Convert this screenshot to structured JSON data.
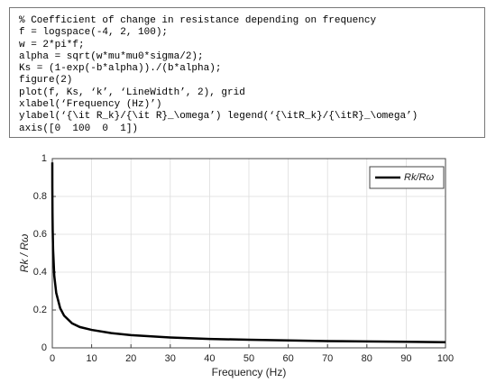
{
  "code": {
    "lines": [
      "% Coefficient of change in resistance depending on frequency",
      "f = logspace(-4, 2, 100);",
      "w = 2*pi*f;",
      "alpha = sqrt(w*mu*mu0*sigma/2);",
      "Ks = (1-exp(-b*alpha))./(b*alpha);",
      "figure(2)",
      "plot(f, Ks, ‘k’, ‘LineWidth’, 2), grid",
      "xlabel(‘Frequency (Hz)’)",
      "ylabel(‘{\\it R_k}/{\\it R}_\\omega’) legend(‘{\\itR_k}/{\\itR}_\\omega’)",
      "axis([0  100  0  1])"
    ]
  },
  "chart_data": {
    "type": "line",
    "x_label": "Frequency (Hz)",
    "y_label": "Rk / Rω",
    "x": [
      0.0001,
      0.01,
      0.05,
      0.1,
      0.2,
      0.5,
      1,
      2,
      3,
      5,
      7,
      10,
      15,
      20,
      30,
      40,
      50,
      60,
      70,
      80,
      90,
      100
    ],
    "series": [
      {
        "name": "Rk/Rω",
        "color": "#000000",
        "values": [
          0.98,
          0.85,
          0.71,
          0.62,
          0.52,
          0.38,
          0.29,
          0.21,
          0.17,
          0.13,
          0.11,
          0.095,
          0.078,
          0.067,
          0.055,
          0.047,
          0.043,
          0.039,
          0.036,
          0.034,
          0.032,
          0.03
        ]
      }
    ],
    "xlim": [
      0,
      100
    ],
    "xticks": [
      0,
      10,
      20,
      30,
      40,
      50,
      60,
      70,
      80,
      90,
      100
    ],
    "ylim": [
      0,
      1
    ],
    "yticks": [
      0,
      0.2,
      0.4,
      0.6,
      0.8,
      1
    ],
    "grid": true,
    "legend": "upper-right"
  }
}
